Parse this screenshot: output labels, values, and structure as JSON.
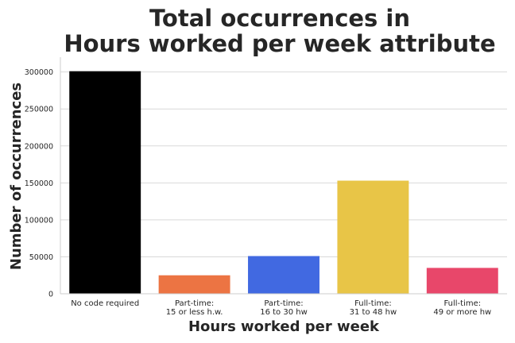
{
  "chart_data": {
    "type": "bar",
    "title_lines": [
      "Total occurrences in",
      "Hours worked per week attribute"
    ],
    "xlabel": "Hours worked per week",
    "ylabel": "Number of occurrences",
    "categories": [
      [
        "No code required"
      ],
      [
        "Part-time:",
        "15 or less h.w."
      ],
      [
        "Part-time:",
        "16 to 30 hw"
      ],
      [
        "Full-time:",
        "31 to 48 hw"
      ],
      [
        "Full-time:",
        "49 or more hw"
      ]
    ],
    "values": [
      301000,
      25000,
      51000,
      153000,
      35000
    ],
    "colors": [
      "#000000",
      "#ec7443",
      "#4169e1",
      "#e8c547",
      "#e8476a"
    ],
    "ylim": [
      0,
      320000
    ],
    "yticks": [
      0,
      50000,
      100000,
      150000,
      200000,
      250000,
      300000
    ],
    "grid": "horizontal",
    "legend": "none"
  }
}
